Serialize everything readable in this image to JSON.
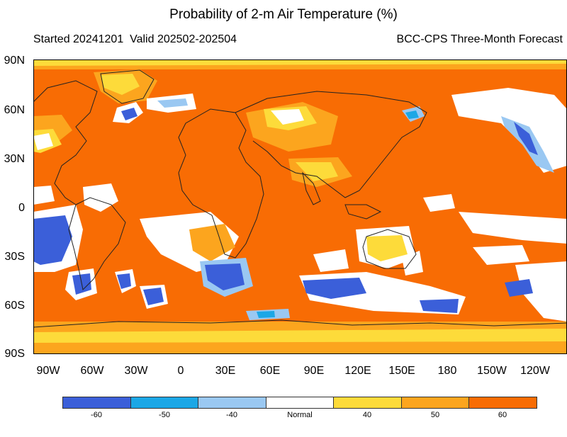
{
  "header": {
    "title": "Probability of 2-m Air Temperature (%)",
    "started": "Started 20241201",
    "valid": "Valid 202502-202504",
    "model": "BCC-CPS Three-Month Forecast"
  },
  "axes": {
    "lat_labels": [
      "90N",
      "60N",
      "30N",
      "0",
      "30S",
      "60S",
      "90S"
    ],
    "lon_labels": [
      "90W",
      "60W",
      "30W",
      "0",
      "30E",
      "60E",
      "90E",
      "120E",
      "150E",
      "180",
      "150W",
      "120W"
    ]
  },
  "legend": {
    "colors": [
      "#3b5fd9",
      "#1ba7e6",
      "#9ac8f2",
      "#ffffff",
      "#fddb3a",
      "#fca51e",
      "#f86c04"
    ],
    "labels": [
      "-60",
      "-50",
      "-40",
      "Normal",
      "40",
      "50",
      "60"
    ]
  },
  "map_colors": {
    "ocean_base": "#f86c04",
    "mid": "#fca51e",
    "low": "#fddb3a",
    "white": "#ffffff",
    "blue_dark": "#3b5fd9",
    "blue_mid": "#1ba7e6",
    "blue_light": "#9ac8f2",
    "coast": "#222222"
  }
}
